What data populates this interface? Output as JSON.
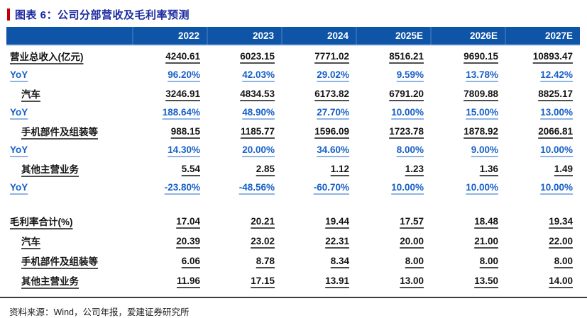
{
  "title": "图表 6：公司分部营收及毛利率预测",
  "source": "资料来源：Wind，公司年报，爱建证券研究所",
  "colors": {
    "title_text": "#1b2aa0",
    "accent_red_bar": "#c00000",
    "header_bg": "#0f55a7",
    "header_text": "#ffffff",
    "blue_value_text": "#1760c8",
    "black_value_text": "#141414",
    "footer_rule": "#3c3c3c"
  },
  "table": {
    "columns": [
      "",
      "2022",
      "2023",
      "2024",
      "2025E",
      "2026E",
      "2027E"
    ],
    "rows": [
      {
        "label": "营业总收入(亿元)",
        "style": "black",
        "indent": false,
        "values": [
          "4240.61",
          "6023.15",
          "7771.02",
          "8516.21",
          "9690.15",
          "10893.47"
        ]
      },
      {
        "label": "YoY",
        "style": "blue",
        "indent": false,
        "values": [
          "96.20%",
          "42.03%",
          "29.02%",
          "9.59%",
          "13.78%",
          "12.42%"
        ]
      },
      {
        "label": "汽车",
        "style": "black",
        "indent": true,
        "values": [
          "3246.91",
          "4834.53",
          "6173.82",
          "6791.20",
          "7809.88",
          "8825.17"
        ]
      },
      {
        "label": "YoY",
        "style": "blue",
        "indent": false,
        "values": [
          "188.64%",
          "48.90%",
          "27.70%",
          "10.00%",
          "15.00%",
          "13.00%"
        ]
      },
      {
        "label": "手机部件及组装等",
        "style": "black",
        "indent": true,
        "values": [
          "988.15",
          "1185.77",
          "1596.09",
          "1723.78",
          "1878.92",
          "2066.81"
        ]
      },
      {
        "label": "YoY",
        "style": "blue",
        "indent": false,
        "values": [
          "14.30%",
          "20.00%",
          "34.60%",
          "8.00%",
          "9.00%",
          "10.00%"
        ]
      },
      {
        "label": "其他主营业务",
        "style": "black",
        "indent": true,
        "values": [
          "5.54",
          "2.85",
          "1.12",
          "1.23",
          "1.36",
          "1.49"
        ]
      },
      {
        "label": "YoY",
        "style": "blue",
        "indent": false,
        "values": [
          "-23.80%",
          "-48.56%",
          "-60.70%",
          "10.00%",
          "10.00%",
          "10.00%"
        ]
      },
      {
        "label": "",
        "style": "spacer",
        "indent": false,
        "values": [
          "",
          "",
          "",
          "",
          "",
          ""
        ]
      },
      {
        "label": "毛利率合计(%)",
        "style": "black",
        "indent": false,
        "values": [
          "17.04",
          "20.21",
          "19.44",
          "17.57",
          "18.48",
          "19.34"
        ]
      },
      {
        "label": "汽车",
        "style": "black",
        "indent": true,
        "values": [
          "20.39",
          "23.02",
          "22.31",
          "20.00",
          "21.00",
          "22.00"
        ]
      },
      {
        "label": "手机部件及组装等",
        "style": "black",
        "indent": true,
        "values": [
          "6.06",
          "8.78",
          "8.34",
          "8.00",
          "8.00",
          "8.00"
        ]
      },
      {
        "label": "其他主营业务",
        "style": "black",
        "indent": true,
        "values": [
          "11.96",
          "17.15",
          "13.91",
          "13.00",
          "13.50",
          "14.00"
        ]
      }
    ]
  }
}
